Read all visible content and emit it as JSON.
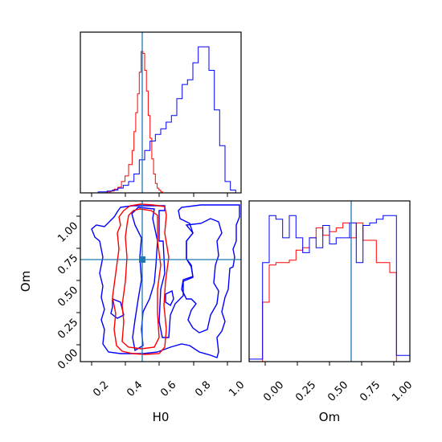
{
  "chart_data": {
    "type": "corner",
    "parameters": [
      "H0",
      "Om"
    ],
    "truth": {
      "H0": 0.5,
      "Om": 0.665
    },
    "colors": {
      "red": "#ff0000",
      "blue": "#0000ff",
      "truth": "#1f77b4"
    },
    "panels": [
      {
        "id": "hist-H0",
        "type": "histogram",
        "xlim": [
          0.15,
          1.05
        ],
        "series": [
          {
            "color": "#ff0000",
            "edges": [
              0.3,
              0.32,
              0.34,
              0.36,
              0.38,
              0.4,
              0.42,
              0.44,
              0.45,
              0.46,
              0.47,
              0.48,
              0.49,
              0.5,
              0.51,
              0.52,
              0.53,
              0.54,
              0.55,
              0.56,
              0.57,
              0.58,
              0.59,
              0.6,
              0.61,
              0.62
            ],
            "counts": [
              1,
              2,
              4,
              6,
              12,
              18,
              30,
              45,
              65,
              85,
              105,
              128,
              150,
              148,
              130,
              108,
              82,
              58,
              36,
              20,
              10,
              5,
              3,
              1,
              0
            ]
          },
          {
            "color": "#0000ff",
            "edges": [
              0.15,
              0.25,
              0.3,
              0.33,
              0.36,
              0.39,
              0.42,
              0.45,
              0.48,
              0.51,
              0.54,
              0.57,
              0.6,
              0.63,
              0.66,
              0.69,
              0.72,
              0.75,
              0.78,
              0.81,
              0.84,
              0.87,
              0.9,
              0.93,
              0.96,
              0.99,
              1.02
            ],
            "counts": [
              0,
              1,
              2,
              3,
              5,
              8,
              12,
              20,
              35,
              45,
              55,
              62,
              68,
              75,
              82,
              100,
              115,
              120,
              138,
              155,
              155,
              130,
              88,
              50,
              12,
              3
            ]
          }
        ]
      },
      {
        "id": "contour-H0-Om",
        "type": "contour",
        "xlim": [
          0.15,
          1.05
        ],
        "ylim": [
          -0.1,
          1.12
        ],
        "xticks": [
          "0.2",
          "0.4",
          "0.6",
          "0.8",
          "1.0"
        ],
        "yticks": [
          "0.00",
          "0.25",
          "0.50",
          "0.75",
          "1.00"
        ],
        "xlabel": "H0",
        "ylabel": "Om"
      },
      {
        "id": "hist-Om",
        "type": "histogram",
        "xlim": [
          -0.1,
          1.1
        ],
        "xticks": [
          "0.00",
          "0.25",
          "0.50",
          "0.75",
          "1.00"
        ],
        "xlabel": "Om",
        "series": [
          {
            "color": "#ff0000",
            "edges": [
              0.0,
              0.05,
              0.1,
              0.15,
              0.2,
              0.25,
              0.3,
              0.35,
              0.4,
              0.45,
              0.5,
              0.55,
              0.6,
              0.65,
              0.7,
              0.75,
              0.8,
              0.85,
              0.9,
              0.95,
              1.0
            ],
            "counts": [
              48,
              78,
              80,
              80,
              82,
              90,
              92,
              100,
              108,
              102,
              105,
              108,
              112,
              100,
              112,
              98,
              98,
              80,
              80,
              72
            ]
          },
          {
            "color": "#0000ff",
            "edges": [
              -0.1,
              -0.05,
              0.0,
              0.05,
              0.1,
              0.15,
              0.2,
              0.25,
              0.3,
              0.35,
              0.4,
              0.45,
              0.5,
              0.55,
              0.6,
              0.65,
              0.7,
              0.75,
              0.8,
              0.85,
              0.9,
              0.95,
              1.0,
              1.05,
              1.1
            ],
            "counts": [
              2,
              2,
              80,
              118,
              115,
              100,
              118,
              100,
              88,
              100,
              92,
              110,
              95,
              100,
              100,
              112,
              80,
              110,
              112,
              115,
              118,
              118,
              5,
              5
            ]
          }
        ]
      }
    ]
  }
}
